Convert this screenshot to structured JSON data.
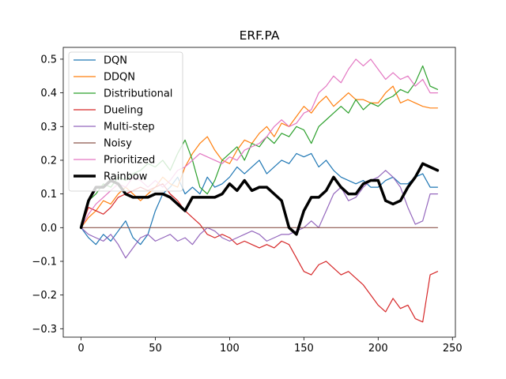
{
  "chart_data": {
    "type": "line",
    "title": "ERF.PA",
    "xlabel": "",
    "ylabel": "",
    "xlim": [
      -12,
      252
    ],
    "ylim": [
      -0.325,
      0.535
    ],
    "xticks": [
      0,
      50,
      100,
      150,
      200,
      250
    ],
    "yticks": [
      -0.3,
      -0.2,
      -0.1,
      0.0,
      0.1,
      0.2,
      0.3,
      0.4,
      0.5
    ],
    "xtick_labels": [
      "0",
      "50",
      "100",
      "150",
      "200",
      "250"
    ],
    "ytick_labels": [
      "−0.3",
      "−0.2",
      "−0.1",
      "0.0",
      "0.1",
      "0.2",
      "0.3",
      "0.4",
      "0.5"
    ],
    "grid": false,
    "legend_position": "top-left",
    "series": [
      {
        "name": "DQN",
        "color": "#1f77b4",
        "width": 1.2,
        "x": [
          0,
          5,
          10,
          15,
          20,
          25,
          30,
          35,
          40,
          45,
          50,
          55,
          60,
          65,
          70,
          75,
          80,
          85,
          90,
          95,
          100,
          105,
          110,
          115,
          120,
          125,
          130,
          135,
          140,
          145,
          150,
          155,
          160,
          165,
          170,
          175,
          180,
          185,
          190,
          195,
          200,
          205,
          210,
          215,
          220,
          225,
          230,
          235,
          240
        ],
        "y": [
          0.0,
          -0.03,
          -0.05,
          -0.02,
          -0.04,
          -0.01,
          0.02,
          -0.03,
          -0.05,
          -0.02,
          0.05,
          0.1,
          0.12,
          0.15,
          0.1,
          0.12,
          0.1,
          0.15,
          0.12,
          0.13,
          0.15,
          0.18,
          0.16,
          0.18,
          0.2,
          0.16,
          0.18,
          0.2,
          0.19,
          0.22,
          0.21,
          0.22,
          0.18,
          0.2,
          0.17,
          0.15,
          0.14,
          0.13,
          0.14,
          0.12,
          0.12,
          0.14,
          0.15,
          0.13,
          0.13,
          0.15,
          0.16,
          0.12,
          0.12
        ]
      },
      {
        "name": "DDQN",
        "color": "#ff7f0e",
        "width": 1.2,
        "x": [
          0,
          5,
          10,
          15,
          20,
          25,
          30,
          35,
          40,
          45,
          50,
          55,
          60,
          65,
          70,
          75,
          80,
          85,
          90,
          95,
          100,
          105,
          110,
          115,
          120,
          125,
          130,
          135,
          140,
          145,
          150,
          155,
          160,
          165,
          170,
          175,
          180,
          185,
          190,
          195,
          200,
          205,
          210,
          215,
          220,
          225,
          230,
          235,
          240
        ],
        "y": [
          0.0,
          0.03,
          0.05,
          0.08,
          0.07,
          0.1,
          0.12,
          0.1,
          0.08,
          0.1,
          0.12,
          0.15,
          0.13,
          0.12,
          0.18,
          0.22,
          0.25,
          0.27,
          0.23,
          0.2,
          0.19,
          0.23,
          0.26,
          0.25,
          0.28,
          0.3,
          0.27,
          0.31,
          0.3,
          0.33,
          0.36,
          0.34,
          0.37,
          0.39,
          0.36,
          0.38,
          0.4,
          0.38,
          0.38,
          0.37,
          0.37,
          0.4,
          0.42,
          0.37,
          0.38,
          0.37,
          0.36,
          0.355,
          0.355
        ]
      },
      {
        "name": "Distributional",
        "color": "#2ca02c",
        "width": 1.2,
        "x": [
          0,
          5,
          10,
          15,
          20,
          25,
          30,
          35,
          40,
          45,
          50,
          55,
          60,
          65,
          70,
          75,
          80,
          85,
          90,
          95,
          100,
          105,
          110,
          115,
          120,
          125,
          130,
          135,
          140,
          145,
          150,
          155,
          160,
          165,
          170,
          175,
          180,
          185,
          190,
          195,
          200,
          205,
          210,
          215,
          220,
          225,
          230,
          235,
          240
        ],
        "y": [
          0.0,
          0.08,
          0.1,
          0.13,
          0.12,
          0.15,
          0.14,
          0.16,
          0.17,
          0.19,
          0.18,
          0.2,
          0.17,
          0.22,
          0.26,
          0.2,
          0.12,
          0.1,
          0.14,
          0.2,
          0.22,
          0.24,
          0.2,
          0.25,
          0.24,
          0.27,
          0.25,
          0.28,
          0.27,
          0.3,
          0.29,
          0.25,
          0.3,
          0.32,
          0.34,
          0.36,
          0.34,
          0.38,
          0.35,
          0.37,
          0.36,
          0.38,
          0.39,
          0.41,
          0.4,
          0.43,
          0.48,
          0.42,
          0.41
        ]
      },
      {
        "name": "Dueling",
        "color": "#d62728",
        "width": 1.2,
        "x": [
          0,
          5,
          10,
          15,
          20,
          25,
          30,
          35,
          40,
          45,
          50,
          55,
          60,
          65,
          70,
          75,
          80,
          85,
          90,
          95,
          100,
          105,
          110,
          115,
          120,
          125,
          130,
          135,
          140,
          145,
          150,
          155,
          160,
          165,
          170,
          175,
          180,
          185,
          190,
          195,
          200,
          205,
          210,
          215,
          220,
          225,
          230,
          235,
          240
        ],
        "y": [
          0.0,
          0.06,
          0.05,
          0.04,
          0.06,
          0.09,
          0.1,
          0.11,
          0.12,
          0.11,
          0.12,
          0.13,
          0.1,
          0.08,
          0.05,
          0.03,
          0.01,
          -0.02,
          -0.03,
          -0.02,
          -0.03,
          -0.05,
          -0.04,
          -0.05,
          -0.06,
          -0.05,
          -0.06,
          -0.04,
          -0.05,
          -0.09,
          -0.13,
          -0.14,
          -0.11,
          -0.1,
          -0.12,
          -0.14,
          -0.13,
          -0.15,
          -0.17,
          -0.2,
          -0.23,
          -0.25,
          -0.21,
          -0.24,
          -0.23,
          -0.27,
          -0.28,
          -0.14,
          -0.13
        ]
      },
      {
        "name": "Multi-step",
        "color": "#9467bd",
        "width": 1.2,
        "x": [
          0,
          5,
          10,
          15,
          20,
          25,
          30,
          35,
          40,
          45,
          50,
          55,
          60,
          65,
          70,
          75,
          80,
          85,
          90,
          95,
          100,
          105,
          110,
          115,
          120,
          125,
          130,
          135,
          140,
          145,
          150,
          155,
          160,
          165,
          170,
          175,
          180,
          185,
          190,
          195,
          200,
          205,
          210,
          215,
          220,
          225,
          230,
          235,
          240
        ],
        "y": [
          0.0,
          -0.02,
          -0.03,
          -0.04,
          -0.02,
          -0.05,
          -0.09,
          -0.06,
          -0.03,
          -0.02,
          -0.04,
          -0.03,
          -0.02,
          -0.04,
          -0.03,
          -0.05,
          -0.02,
          0.0,
          -0.01,
          -0.03,
          -0.04,
          -0.03,
          -0.02,
          -0.01,
          -0.02,
          -0.04,
          -0.03,
          -0.02,
          -0.02,
          -0.01,
          0.0,
          0.02,
          0.0,
          0.05,
          0.1,
          0.12,
          0.08,
          0.09,
          0.12,
          0.14,
          0.15,
          0.17,
          0.15,
          0.12,
          0.06,
          0.01,
          0.02,
          0.1,
          0.1
        ]
      },
      {
        "name": "Noisy",
        "color": "#8c564b",
        "width": 1.2,
        "x": [
          0,
          240
        ],
        "y": [
          0.0,
          0.0
        ]
      },
      {
        "name": "Prioritized",
        "color": "#e377c2",
        "width": 1.2,
        "x": [
          0,
          5,
          10,
          15,
          20,
          25,
          30,
          35,
          40,
          45,
          50,
          55,
          60,
          65,
          70,
          75,
          80,
          85,
          90,
          95,
          100,
          105,
          110,
          115,
          120,
          125,
          130,
          135,
          140,
          145,
          150,
          155,
          160,
          165,
          170,
          175,
          180,
          185,
          190,
          195,
          200,
          205,
          210,
          215,
          220,
          225,
          230,
          235,
          240
        ],
        "y": [
          0.0,
          0.04,
          0.07,
          0.09,
          0.11,
          0.13,
          0.12,
          0.15,
          0.14,
          0.12,
          0.14,
          0.12,
          0.14,
          0.17,
          0.18,
          0.2,
          0.22,
          0.21,
          0.2,
          0.19,
          0.21,
          0.2,
          0.23,
          0.24,
          0.25,
          0.27,
          0.3,
          0.32,
          0.3,
          0.31,
          0.34,
          0.35,
          0.4,
          0.42,
          0.45,
          0.43,
          0.47,
          0.5,
          0.48,
          0.5,
          0.47,
          0.44,
          0.46,
          0.44,
          0.45,
          0.42,
          0.44,
          0.4,
          0.4
        ]
      },
      {
        "name": "Rainbow",
        "color": "#000000",
        "width": 3.5,
        "x": [
          0,
          5,
          10,
          15,
          20,
          25,
          30,
          35,
          40,
          45,
          50,
          55,
          60,
          65,
          70,
          75,
          80,
          85,
          90,
          95,
          100,
          105,
          110,
          115,
          120,
          125,
          130,
          135,
          140,
          145,
          150,
          155,
          160,
          165,
          170,
          175,
          180,
          185,
          190,
          195,
          200,
          205,
          210,
          215,
          220,
          225,
          230,
          235,
          240
        ],
        "y": [
          0.0,
          0.08,
          0.12,
          0.12,
          0.14,
          0.13,
          0.1,
          0.09,
          0.09,
          0.09,
          0.1,
          0.1,
          0.09,
          0.07,
          0.05,
          0.09,
          0.09,
          0.09,
          0.09,
          0.1,
          0.13,
          0.11,
          0.14,
          0.11,
          0.12,
          0.12,
          0.1,
          0.08,
          0.0,
          -0.02,
          0.05,
          0.09,
          0.09,
          0.11,
          0.15,
          0.12,
          0.1,
          0.1,
          0.13,
          0.14,
          0.14,
          0.08,
          0.07,
          0.08,
          0.12,
          0.15,
          0.19,
          0.18,
          0.17
        ]
      }
    ]
  }
}
